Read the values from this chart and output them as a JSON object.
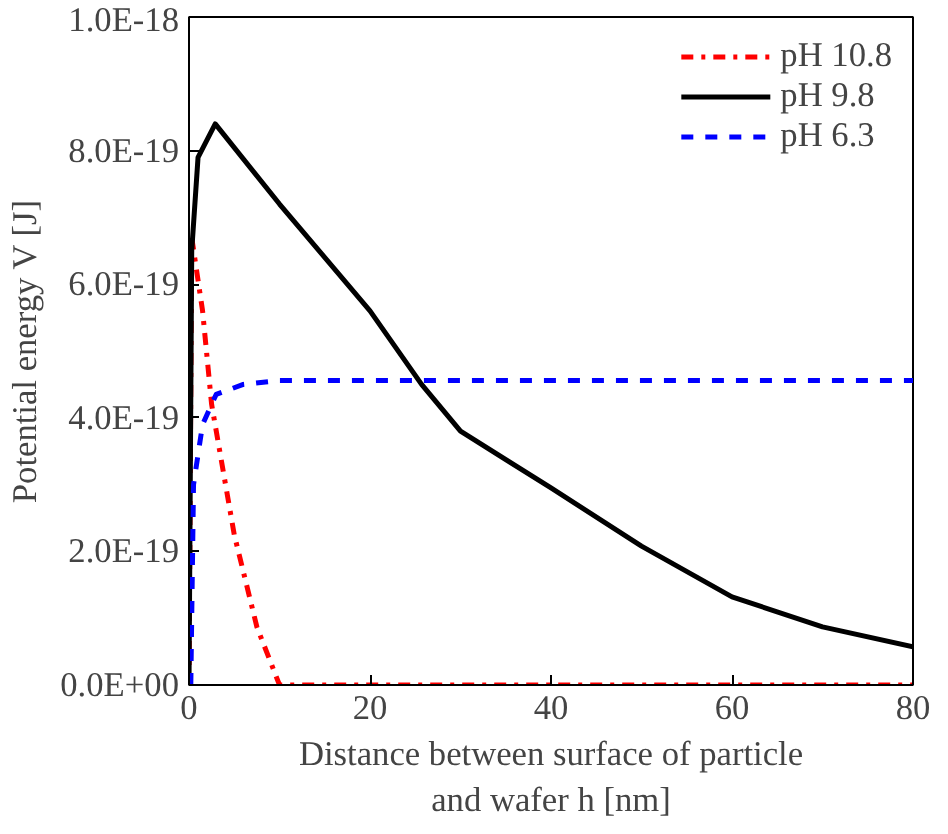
{
  "chart_data": {
    "type": "line",
    "xlabel": "Distance between surface of particle\nand wafer h [nm]",
    "ylabel": "Potential energy V [J]",
    "xlim": [
      0,
      80
    ],
    "xticks": [
      0,
      20,
      40,
      60,
      80
    ],
    "ylim": [
      0,
      1e-18
    ],
    "yticks": [
      {
        "value": 0,
        "label": "0.0E+00"
      },
      {
        "value": 2e-19,
        "label": "2.0E-19"
      },
      {
        "value": 4e-19,
        "label": "4.0E-19"
      },
      {
        "value": 6e-19,
        "label": "6.0E-19"
      },
      {
        "value": 8e-19,
        "label": "8.0E-19"
      },
      {
        "value": 1e-18,
        "label": "1.0E-18"
      }
    ],
    "grid": false,
    "legend": "top right",
    "series": [
      {
        "name": "pH 10.8",
        "color": "#ff0000",
        "line_style": "dashdot",
        "x": [
          0,
          0.3,
          1.5,
          2.5,
          5,
          7.5,
          10,
          80
        ],
        "values": [
          0,
          6.7e-19,
          5.6e-19,
          4.2e-19,
          2.25e-19,
          8.7e-20,
          0,
          0
        ]
      },
      {
        "name": "pH 9.8",
        "color": "#000000",
        "line_style": "solid",
        "x": [
          0,
          0.3,
          1,
          2.9,
          10,
          20,
          25.7,
          30,
          40,
          50,
          60,
          70,
          80
        ],
        "values": [
          0,
          6.5e-19,
          7.9e-19,
          8.4e-19,
          7.2e-19,
          5.6e-19,
          4.5e-19,
          3.8e-19,
          2.95e-19,
          2.08e-19,
          1.32e-19,
          8.7e-20,
          5.7e-20
        ]
      },
      {
        "name": "pH 6.3",
        "color": "#0000ff",
        "line_style": "dashed",
        "x": [
          0.2,
          0.5,
          1.5,
          3,
          6,
          10,
          80
        ],
        "values": [
          0,
          3e-19,
          3.9e-19,
          4.35e-19,
          4.5e-19,
          4.56e-19,
          4.56e-19
        ]
      }
    ]
  }
}
